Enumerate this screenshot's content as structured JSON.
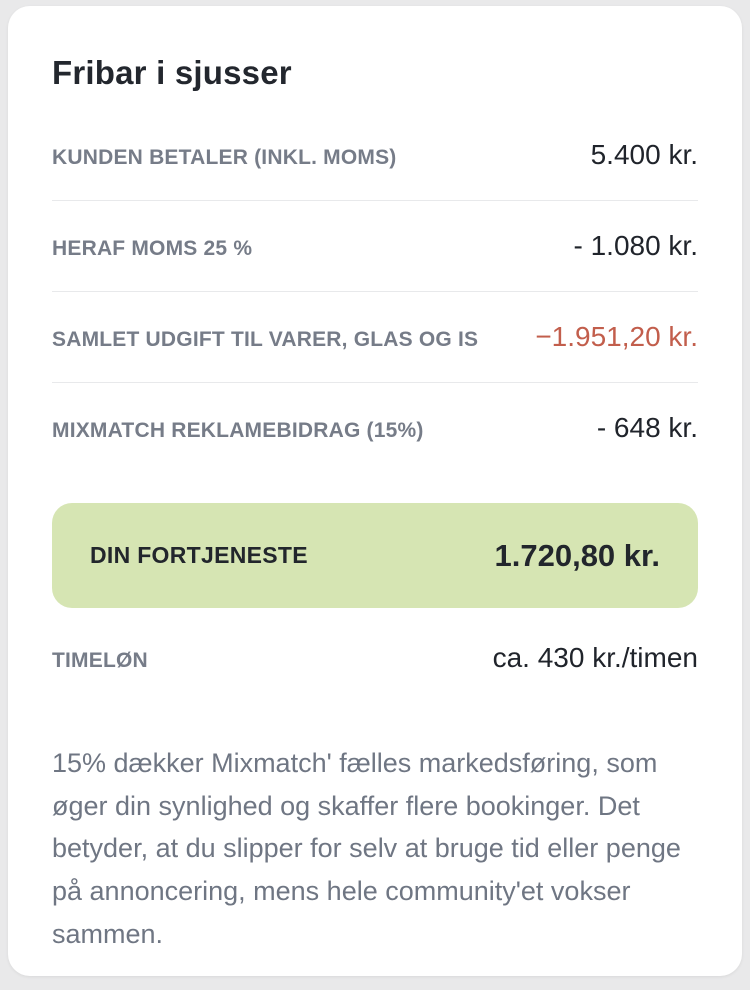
{
  "card": {
    "title": "Fribar i sjusser",
    "rows": [
      {
        "label": "KUNDEN BETALER (INKL. MOMS)",
        "value": "5.400 kr."
      },
      {
        "label": "HERAF MOMS 25 %",
        "value": "- 1.080 kr."
      },
      {
        "label": "SAMLET UDGIFT TIL VARER, GLAS OG IS",
        "value": "−1.951,20 kr."
      },
      {
        "label": "MIXMATCH REKLAMEBIDRAG (15%)",
        "value": "- 648 kr."
      }
    ],
    "profit": {
      "label": "DIN FORTJENESTE",
      "value": "1.720,80 kr."
    },
    "hourly": {
      "label": "TIMELØN",
      "value": "ca. 430 kr./timen"
    },
    "footnote": "15% dækker Mixmatch' fælles markedsføring, som øger din synlighed og skaffer flere bookinger. Det betyder, at du slipper for selv at bruge tid eller penge på annoncering, mens hele community'et vokser sammen."
  },
  "colors": {
    "page_bg": "#e9e9ea",
    "card_bg": "#ffffff",
    "negative_value": "#c25e4c",
    "profit_bg": "#d6e5b3"
  }
}
